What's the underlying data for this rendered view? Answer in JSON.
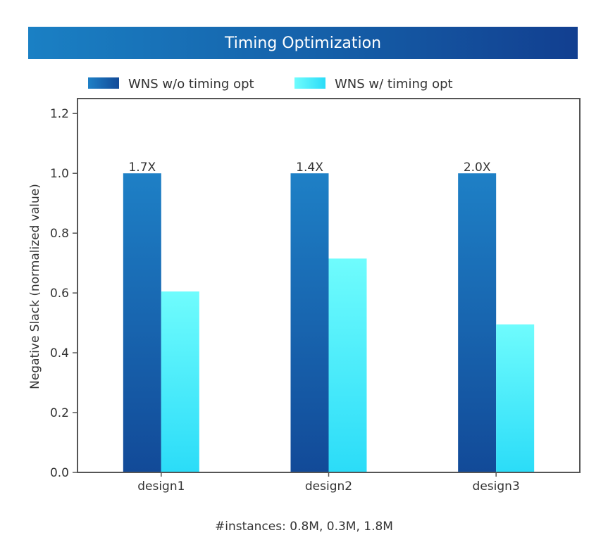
{
  "colors": {
    "wns_without_dark": "#124a98",
    "wns_without_light": "#1e80c6",
    "wns_with_light": "#6ffcfd",
    "wns_with_dark": "#2bdcf8"
  },
  "chart_data": {
    "type": "bar",
    "title": "Timing Optimization",
    "ylabel": "Negative Slack (normalized value)",
    "xlabel": "",
    "categories": [
      "design1",
      "design2",
      "design3"
    ],
    "series": [
      {
        "name": "WNS w/o timing opt",
        "values": [
          1.0,
          1.0,
          1.0
        ]
      },
      {
        "name": "WNS w/ timing opt",
        "values": [
          0.605,
          0.715,
          0.495
        ]
      }
    ],
    "annotations": [
      "1.7X",
      "1.4X",
      "2.0X"
    ],
    "ylim": [
      0,
      1.25
    ],
    "yticks": [
      "0.0",
      "0.2",
      "0.4",
      "0.6",
      "0.8",
      "1.0",
      "1.2"
    ],
    "ytick_values": [
      0,
      0.2,
      0.4,
      0.6,
      0.8,
      1.0,
      1.2
    ],
    "grid": false,
    "legend_position": "top",
    "footnote": "#instances: 0.8M, 0.3M, 1.8M"
  }
}
